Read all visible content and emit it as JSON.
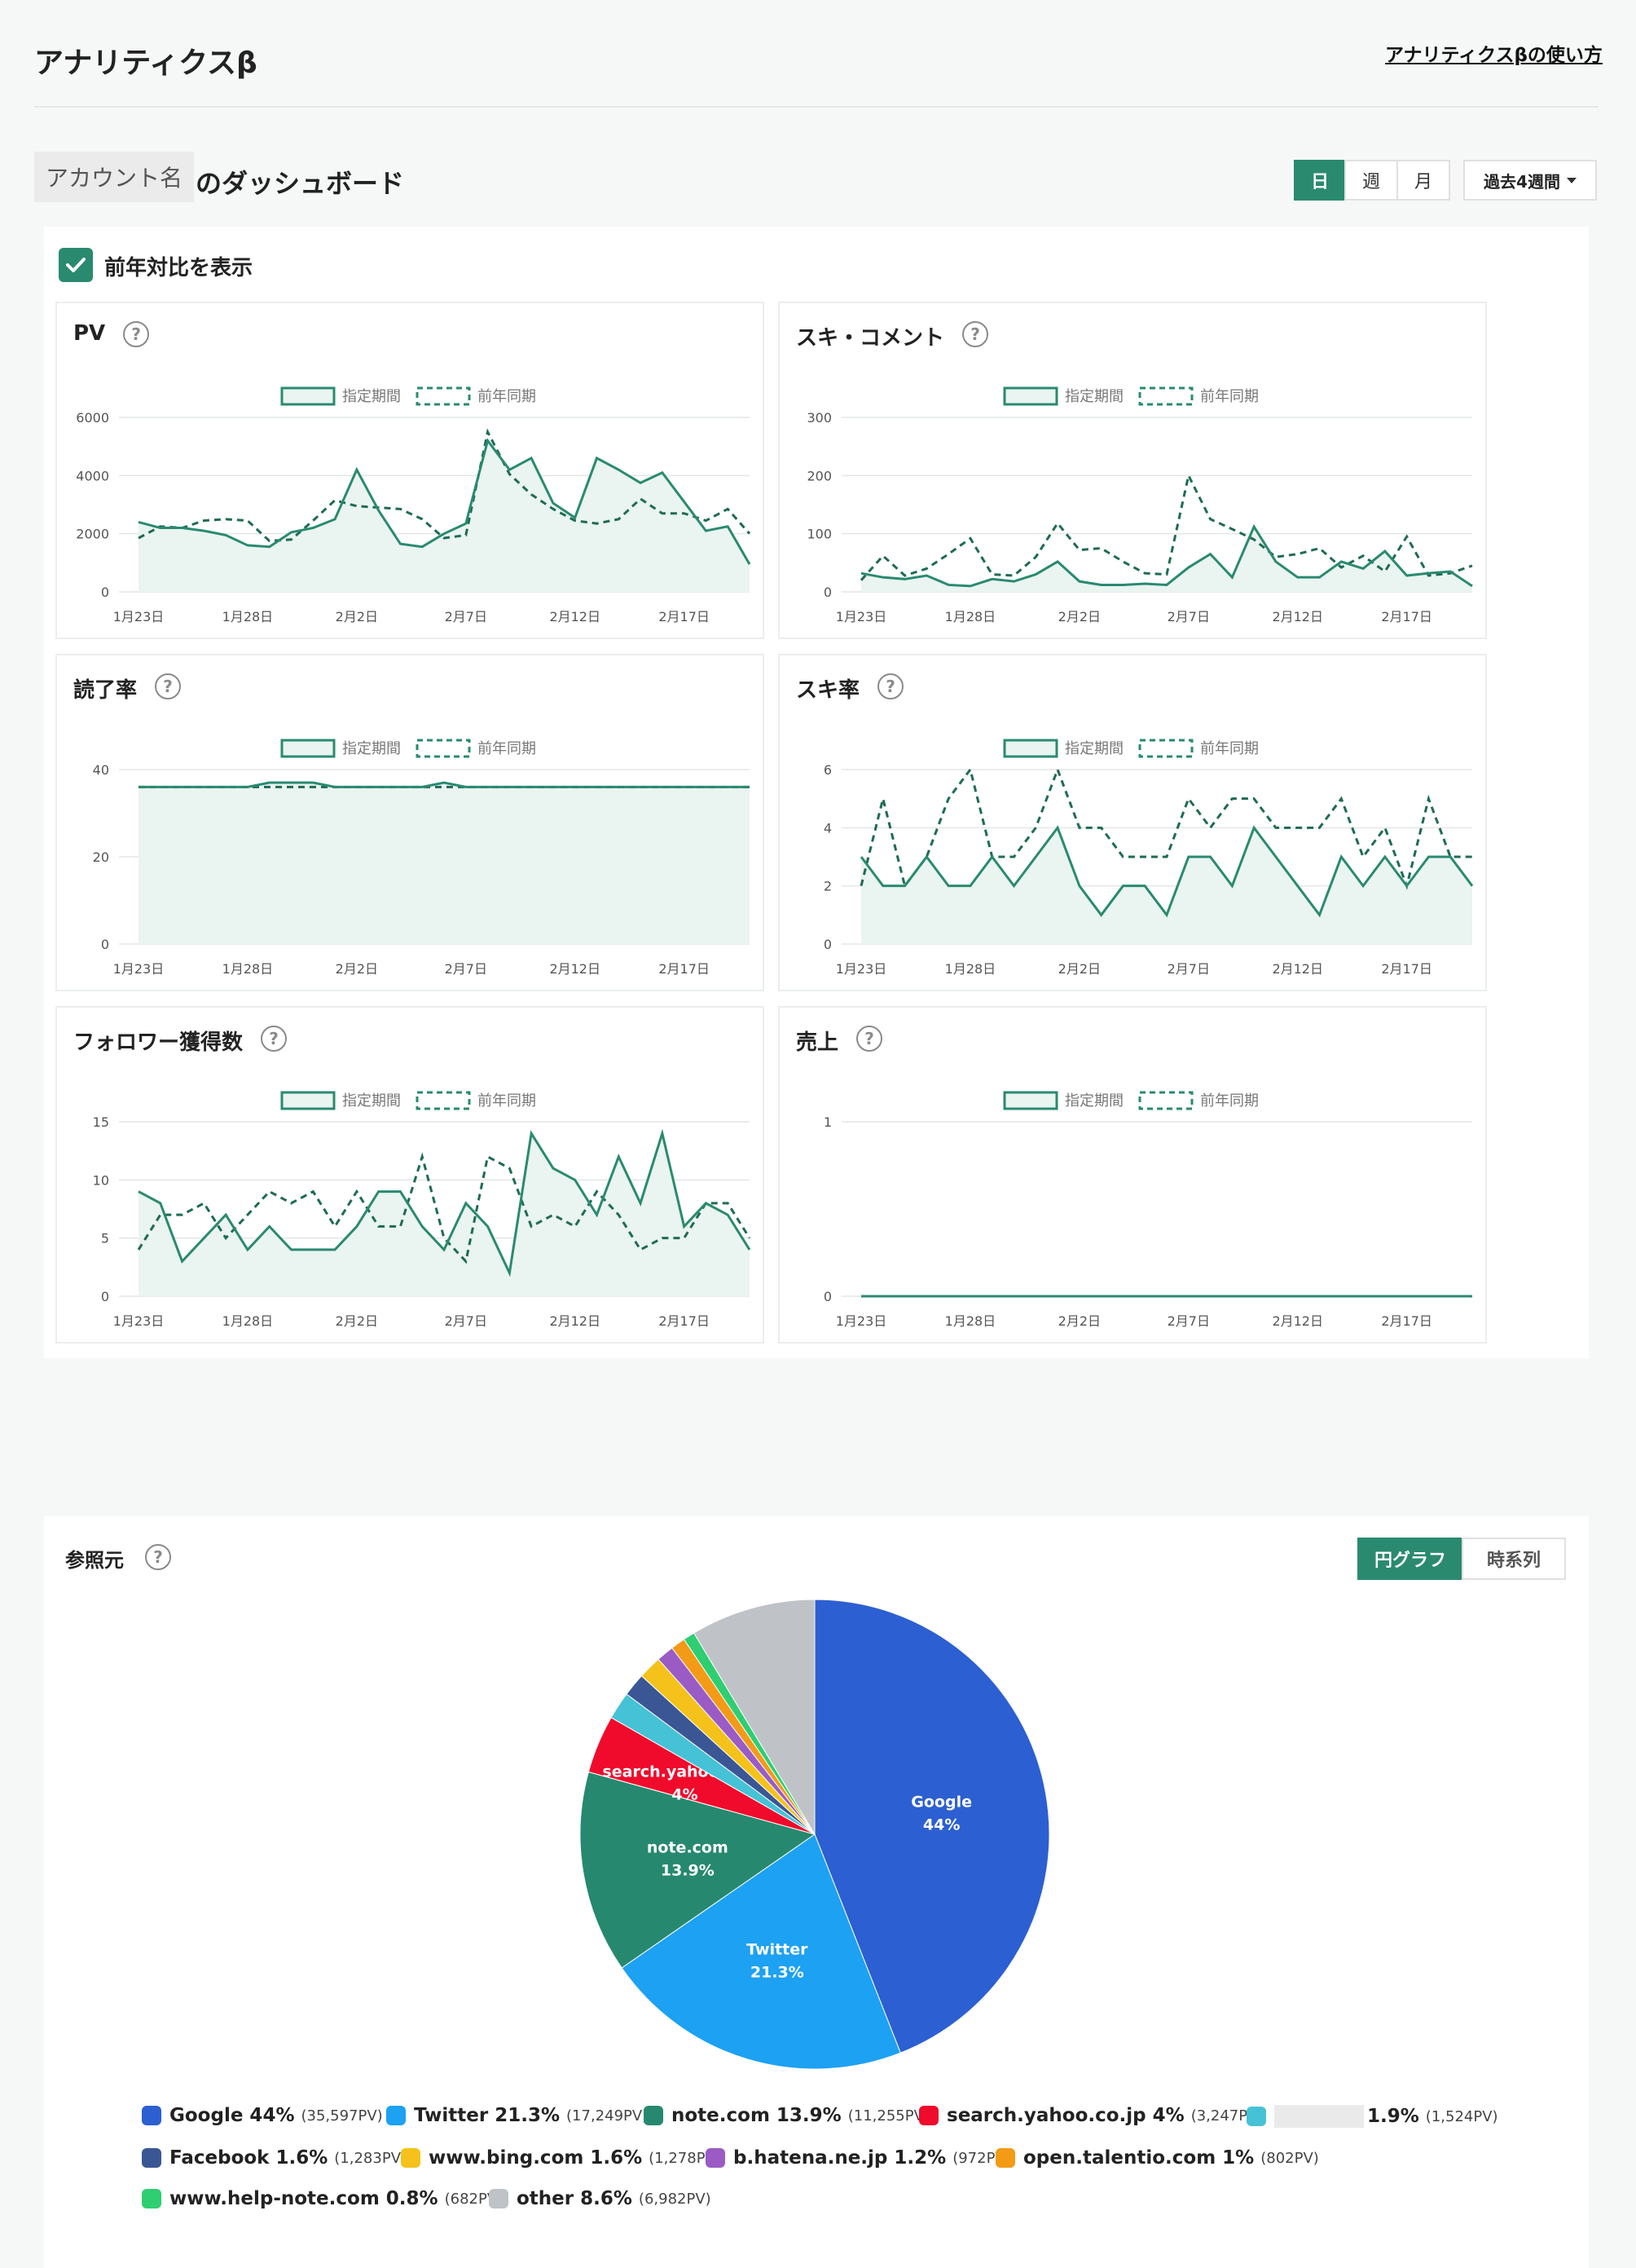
{
  "header": {
    "title": "アナリティクスβ",
    "help_link": "アナリティクスβの使い方"
  },
  "dashboard": {
    "account_name": "アカウント名",
    "suffix": "のダッシュボード"
  },
  "period": {
    "units": [
      "日",
      "週",
      "月"
    ],
    "active_unit": "日",
    "range": "過去4週間"
  },
  "yoy": {
    "label": "前年対比を表示",
    "checked": true
  },
  "legend": {
    "current": "指定期間",
    "previous": "前年同期"
  },
  "x_ticks": [
    "1月23日",
    "1月28日",
    "2月2日",
    "2月7日",
    "2月12日",
    "2月17日"
  ],
  "charts": [
    {
      "id": "pv",
      "title": "PV",
      "type": "area",
      "y_ticks": [
        "0",
        "2000",
        "4000",
        "6000"
      ],
      "ylim": [
        0,
        6000
      ],
      "current": [
        2400,
        2200,
        2200,
        2100,
        1950,
        1600,
        1550,
        2050,
        2200,
        2500,
        4200,
        2800,
        1650,
        1550,
        2000,
        2350,
        5200,
        4200,
        4600,
        3050,
        2550,
        4600,
        4200,
        3750,
        4100,
        3100,
        2100,
        2250,
        950
      ],
      "previous": [
        1850,
        2250,
        2200,
        2450,
        2500,
        2450,
        1750,
        1800,
        2450,
        3150,
        2950,
        2900,
        2850,
        2500,
        1850,
        1950,
        5500,
        4050,
        3350,
        2850,
        2450,
        2350,
        2500,
        3200,
        2700,
        2700,
        2450,
        2850,
        2000
      ]
    },
    {
      "id": "suki",
      "title": "スキ・コメント",
      "type": "area",
      "y_ticks": [
        "0",
        "100",
        "200",
        "300"
      ],
      "ylim": [
        0,
        300
      ],
      "current": [
        32,
        25,
        22,
        28,
        12,
        10,
        22,
        18,
        30,
        52,
        18,
        12,
        12,
        14,
        12,
        42,
        65,
        25,
        112,
        52,
        25,
        25,
        52,
        40,
        70,
        28,
        32,
        35,
        10
      ],
      "previous": [
        20,
        62,
        28,
        40,
        65,
        92,
        30,
        28,
        60,
        118,
        72,
        75,
        52,
        32,
        30,
        200,
        125,
        108,
        90,
        60,
        65,
        75,
        42,
        62,
        35,
        95,
        28,
        32,
        45
      ]
    },
    {
      "id": "read",
      "title": "読了率",
      "type": "area",
      "y_ticks": [
        "0",
        "20",
        "40"
      ],
      "ylim": [
        0,
        40
      ],
      "current": [
        36,
        36,
        36,
        36,
        36,
        36,
        37,
        37,
        37,
        36,
        36,
        36,
        36,
        36,
        37,
        36,
        36,
        36,
        36,
        36,
        36,
        36,
        36,
        36,
        36,
        36,
        36,
        36,
        36
      ],
      "previous": [
        36,
        36,
        36,
        36,
        36,
        36,
        36,
        36,
        36,
        36,
        36,
        36,
        36,
        36,
        36,
        36,
        36,
        36,
        36,
        36,
        36,
        36,
        36,
        36,
        36,
        36,
        36,
        36,
        36
      ]
    },
    {
      "id": "sukirate",
      "title": "スキ率",
      "type": "area",
      "y_ticks": [
        "0",
        "2",
        "4",
        "6"
      ],
      "ylim": [
        0,
        6
      ],
      "current": [
        3,
        2,
        2,
        3,
        2,
        2,
        3,
        2,
        3,
        4,
        2,
        1,
        2,
        2,
        1,
        3,
        3,
        2,
        4,
        3,
        2,
        1,
        3,
        2,
        3,
        2,
        3,
        3,
        2
      ],
      "previous": [
        2,
        5,
        2,
        3,
        5,
        6,
        3,
        3,
        4,
        6,
        4,
        4,
        3,
        3,
        3,
        5,
        4,
        5,
        5,
        4,
        4,
        4,
        5,
        3,
        4,
        2,
        5,
        3,
        3
      ]
    },
    {
      "id": "followers",
      "title": "フォロワー獲得数",
      "type": "area",
      "y_ticks": [
        "0",
        "5",
        "10",
        "15"
      ],
      "ylim": [
        0,
        15
      ],
      "current": [
        9,
        8,
        3,
        5,
        7,
        4,
        6,
        4,
        4,
        4,
        6,
        9,
        9,
        6,
        4,
        8,
        6,
        2,
        14,
        11,
        10,
        7,
        12,
        8,
        14,
        6,
        8,
        7,
        4
      ],
      "previous": [
        4,
        7,
        7,
        8,
        5,
        7,
        9,
        8,
        9,
        6,
        9,
        6,
        6,
        12,
        5,
        3,
        12,
        11,
        6,
        7,
        6,
        9,
        7,
        4,
        5,
        5,
        8,
        8,
        5
      ]
    },
    {
      "id": "sales",
      "title": "売上",
      "type": "area",
      "y_ticks": [
        "0",
        "1"
      ],
      "ylim": [
        0,
        1
      ],
      "current": [
        0,
        0,
        0,
        0,
        0,
        0,
        0,
        0,
        0,
        0,
        0,
        0,
        0,
        0,
        0,
        0,
        0,
        0,
        0,
        0,
        0,
        0,
        0,
        0,
        0,
        0,
        0,
        0,
        0
      ],
      "previous": [
        0,
        0,
        0,
        0,
        0,
        0,
        0,
        0,
        0,
        0,
        0,
        0,
        0,
        0,
        0,
        0,
        0,
        0,
        0,
        0,
        0,
        0,
        0,
        0,
        0,
        0,
        0,
        0,
        0
      ]
    }
  ],
  "referrers": {
    "title": "参照元",
    "toggle": [
      "円グラフ",
      "時系列"
    ],
    "active_toggle": "円グラフ",
    "chart_data": {
      "type": "pie",
      "slices": [
        {
          "name": "Google",
          "pct": 44,
          "pct_label": "44%",
          "pv": "(35,597PV)",
          "color": "#2c5fd1",
          "show_label": true
        },
        {
          "name": "Twitter",
          "pct": 21.3,
          "pct_label": "21.3%",
          "pv": "(17,249PV)",
          "color": "#1da1f2",
          "show_label": true
        },
        {
          "name": "note.com",
          "pct": 13.9,
          "pct_label": "13.9%",
          "pv": "(11,255PV)",
          "color": "#26896f",
          "show_label": true
        },
        {
          "name": "search.yahoo.co.jp",
          "pct": 4,
          "pct_label": "4%",
          "pv": "(3,247PV)",
          "color": "#f00a2b",
          "show_label": true
        },
        {
          "name": "",
          "pct": 1.9,
          "pct_label": "1.9%",
          "pv": "(1,524PV)",
          "color": "#46c2d6",
          "show_label": false,
          "redacted": true
        },
        {
          "name": "Facebook",
          "pct": 1.6,
          "pct_label": "1.6%",
          "pv": "(1,283PV)",
          "color": "#3b5694",
          "show_label": false
        },
        {
          "name": "www.bing.com",
          "pct": 1.6,
          "pct_label": "1.6%",
          "pv": "(1,278PV)",
          "color": "#f4c21a",
          "show_label": false
        },
        {
          "name": "b.hatena.ne.jp",
          "pct": 1.2,
          "pct_label": "1.2%",
          "pv": "(972PV)",
          "color": "#9a5cc4",
          "show_label": false
        },
        {
          "name": "open.talentio.com",
          "pct": 1,
          "pct_label": "1%",
          "pv": "(802PV)",
          "color": "#f39b17",
          "show_label": false
        },
        {
          "name": "www.help-note.com",
          "pct": 0.8,
          "pct_label": "0.8%",
          "pv": "(682PV)",
          "color": "#2fce72",
          "show_label": false
        },
        {
          "name": "other",
          "pct": 8.6,
          "pct_label": "8.6%",
          "pv": "(6,982PV)",
          "color": "#bfc3c7",
          "show_label": false
        }
      ]
    }
  },
  "colors": {
    "accent": "#2a8a70",
    "area_fill": "#eaf4f0",
    "grid": "#e4e6e6"
  }
}
